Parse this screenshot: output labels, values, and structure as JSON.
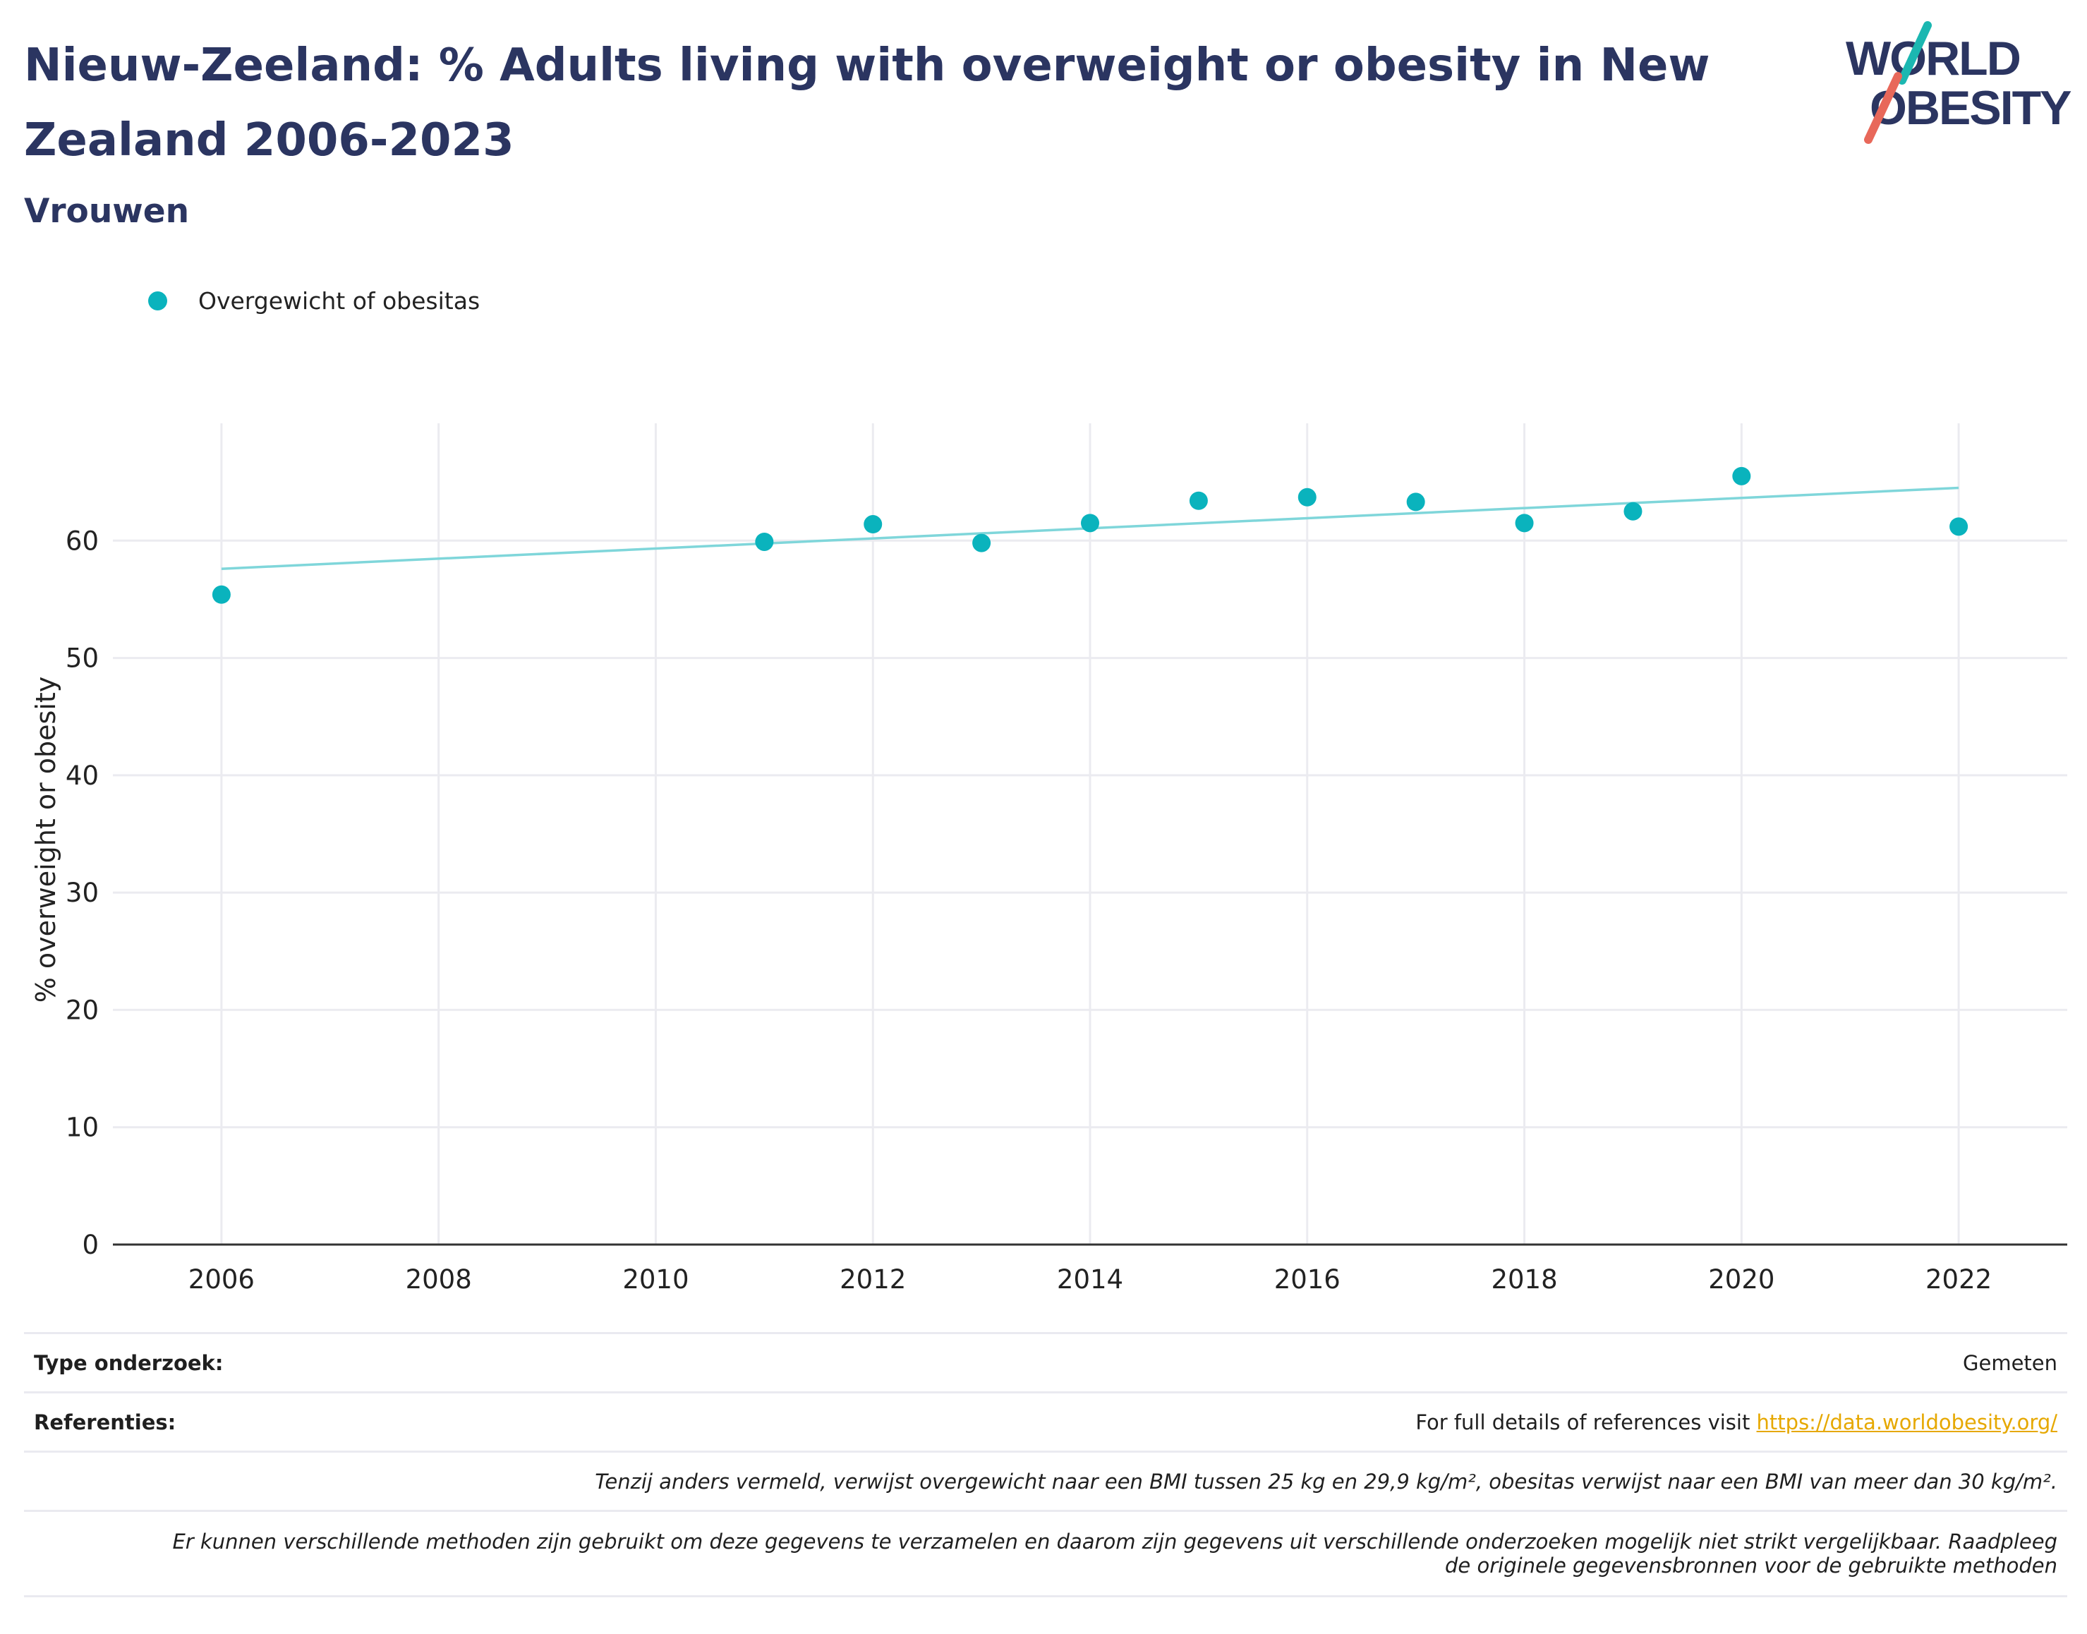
{
  "header": {
    "title": "Nieuw-Zeeland: % Adults living with overweight or obesity in New Zealand 2006-2023",
    "subtitle": "Vrouwen"
  },
  "logo": {
    "line1": "WORLD",
    "line2": "OBESITY"
  },
  "colors": {
    "series": "#0ab3bd",
    "trend": "#7fd6da",
    "title": "#2b3561",
    "link": "#e6a800",
    "grid": "#ebebf0"
  },
  "chart_data": {
    "type": "scatter",
    "ylabel": "% overweight or obesity",
    "xlim": [
      2005,
      2023
    ],
    "ylim": [
      0,
      70
    ],
    "x_ticks": [
      2006,
      2008,
      2010,
      2012,
      2014,
      2016,
      2018,
      2020,
      2022
    ],
    "y_ticks": [
      0,
      10,
      20,
      30,
      40,
      50,
      60
    ],
    "grid": true,
    "legend_position": "top-left",
    "series": [
      {
        "name": "Overgewicht of obesitas",
        "x": [
          2006,
          2011,
          2012,
          2013,
          2014,
          2015,
          2016,
          2017,
          2018,
          2019,
          2020,
          2022
        ],
        "y": [
          55.4,
          59.9,
          61.4,
          59.8,
          61.5,
          63.4,
          63.7,
          63.3,
          61.5,
          62.5,
          65.5,
          61.2
        ]
      }
    ],
    "trendline": {
      "x": [
        2006,
        2022
      ],
      "y": [
        57.6,
        64.5
      ]
    }
  },
  "footer": {
    "type_label": "Type onderzoek:",
    "type_value": "Gemeten",
    "ref_label": "Referenties:",
    "ref_text": "For full details of references visit",
    "ref_link": "https://data.worldobesity.org/",
    "note1": "Tenzij anders vermeld, verwijst overgewicht naar een BMI tussen 25 kg en 29,9 kg/m², obesitas verwijst naar een BMI van meer dan 30 kg/m².",
    "note2_line1": "Er kunnen verschillende methoden zijn gebruikt om deze gegevens te verzamelen en daarom zijn gegevens uit verschillende onderzoeken mogelijk niet strikt vergelijkbaar. Raadpleeg",
    "note2_line2": "de originele gegevensbronnen voor de gebruikte methoden"
  }
}
